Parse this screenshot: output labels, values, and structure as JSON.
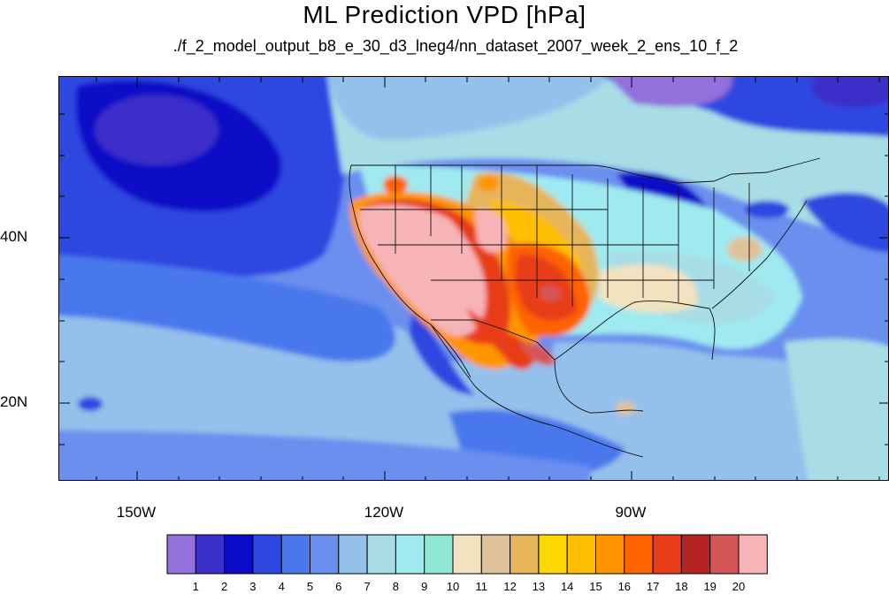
{
  "title": "ML Prediction VPD [hPa]",
  "subtitle": "./f_2_model_output_b8_e_30_d3_lneg4/nn_dataset_2007_week_2_ens_10_f_2",
  "map": {
    "projection": "cylindrical-equidistant",
    "lon_range": [
      -159.5,
      -59
    ],
    "lat_range": [
      10.5,
      59.5
    ],
    "lon_labels": [
      "150W",
      "120W",
      "90W"
    ],
    "lat_labels": [
      "40N",
      "20N"
    ],
    "features": [
      "coastlines",
      "us-state-borders",
      "country-borders"
    ]
  },
  "colorbar": {
    "labels": [
      "1",
      "2",
      "3",
      "4",
      "5",
      "6",
      "7",
      "8",
      "9",
      "10",
      "11",
      "12",
      "13",
      "14",
      "15",
      "16",
      "17",
      "18",
      "19",
      "20"
    ],
    "colors": [
      "#9370db",
      "#3b2fc9",
      "#0a0ac8",
      "#2e47e0",
      "#4a78ec",
      "#6b8fef",
      "#94c0ec",
      "#a8dde6",
      "#9feaf0",
      "#90e6d4",
      "#f2e2c0",
      "#dfc199",
      "#e6b55a",
      "#fcd800",
      "#ffbe00",
      "#ff9500",
      "#ff6400",
      "#e83c17",
      "#b62323",
      "#d65656",
      "#f7b4b6"
    ]
  }
}
